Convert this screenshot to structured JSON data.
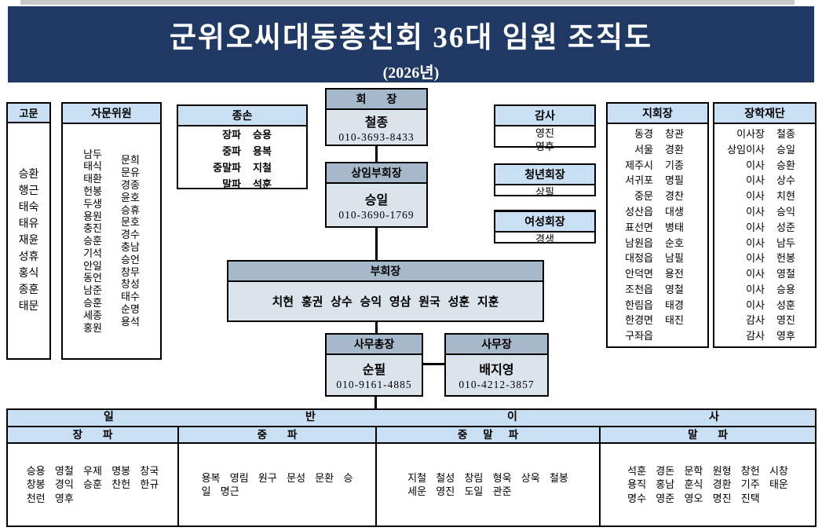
{
  "title": {
    "text": "군위오씨대동종친회 36대 임원 조직도",
    "subtitle": "(2026년)",
    "bg": "#1f3864",
    "fg": "#ffffff"
  },
  "colors": {
    "exec_header": "#a6b9cb",
    "exec_body": "#dbe3eb",
    "light_header": "#c9dff3",
    "border": "#000000"
  },
  "boxes": {
    "gomun": {
      "title": "고문",
      "names": [
        "승환",
        "행근",
        "태숙",
        "태유",
        "재윤",
        "성휴",
        "홍식",
        "종훈",
        "태문"
      ]
    },
    "advisors": {
      "title": "자문위원",
      "col1": [
        "남두",
        "태식",
        "태환",
        "헌봉",
        "두생",
        "용원",
        "충진",
        "승훈",
        "기석",
        "안일",
        "동언",
        "남준",
        "승훈",
        "세종",
        "홍원"
      ],
      "col2": [
        "문희",
        "문유",
        "경종",
        "윤호",
        "승휴",
        "문호",
        "경수",
        "충남",
        "승언",
        "창무",
        "창성",
        "태수",
        "순명",
        "용석"
      ]
    },
    "jongson": {
      "title": "종손",
      "rows": [
        {
          "label": "장파",
          "name": "승용"
        },
        {
          "label": "중파",
          "name": "용복"
        },
        {
          "label": "중말파",
          "name": "지철"
        },
        {
          "label": "말파",
          "name": "석훈"
        }
      ]
    },
    "chairman": {
      "title": "회장",
      "name": "철종",
      "phone": "010-3693-8433"
    },
    "standing_vice": {
      "title": "상임부회장",
      "name": "승일",
      "phone": "010-3690-1769"
    },
    "auditors": {
      "title": "감사",
      "names": [
        "영진",
        "영후"
      ]
    },
    "youth": {
      "title": "청년회장",
      "name": "상필"
    },
    "women": {
      "title": "여성회장",
      "name": "경생"
    },
    "branch_chairs": {
      "title": "지회장",
      "rows": [
        {
          "region": "동경",
          "name": "창관"
        },
        {
          "region": "서울",
          "name": "경환"
        },
        {
          "region": "제주시",
          "name": "기종"
        },
        {
          "region": "서귀포",
          "name": "명필"
        },
        {
          "region": "중문",
          "name": "경찬"
        },
        {
          "region": "성산읍",
          "name": "대생"
        },
        {
          "region": "표선면",
          "name": "병태"
        },
        {
          "region": "남원읍",
          "name": "순호"
        },
        {
          "region": "대정읍",
          "name": "남필"
        },
        {
          "region": "안덕면",
          "name": "용전"
        },
        {
          "region": "조천읍",
          "name": "영철"
        },
        {
          "region": "한림읍",
          "name": "태경"
        },
        {
          "region": "한경면",
          "name": "태진"
        },
        {
          "region": "구좌읍",
          "name": ""
        }
      ]
    },
    "scholarship": {
      "title": "장학재단",
      "rows": [
        {
          "role": "이사장",
          "name": "철종"
        },
        {
          "role": "상임이사",
          "name": "승일"
        },
        {
          "role": "이사",
          "name": "승환"
        },
        {
          "role": "이사",
          "name": "상수"
        },
        {
          "role": "이사",
          "name": "치현"
        },
        {
          "role": "이사",
          "name": "승익"
        },
        {
          "role": "이사",
          "name": "성준"
        },
        {
          "role": "이사",
          "name": "남두"
        },
        {
          "role": "이사",
          "name": "헌봉"
        },
        {
          "role": "이사",
          "name": "영철"
        },
        {
          "role": "이사",
          "name": "승용"
        },
        {
          "role": "이사",
          "name": "성훈"
        },
        {
          "role": "감사",
          "name": "영진"
        },
        {
          "role": "감사",
          "name": "영후"
        }
      ]
    },
    "vice_chairmen": {
      "title": "부회장",
      "names": "치현 홍권 상수 승익 영삼 원국 성훈 지훈"
    },
    "secretary_general": {
      "title": "사무총장",
      "name": "순필",
      "phone": "010-9161-4885"
    },
    "office_manager": {
      "title": "사무장",
      "name": "배지영",
      "phone": "010-4212-3857"
    }
  },
  "directors_table": {
    "merged_header": [
      "일",
      "반",
      "이",
      "사"
    ],
    "columns": [
      {
        "header": "장파",
        "lines": [
          "승용 영철 우제 명봉 창국",
          "창봉 경익 승훈 찬헌 한규",
          "천런 영후"
        ]
      },
      {
        "header": "중파",
        "lines": [
          "용복 영림 원구 문성 문환 승",
          "일 명근"
        ]
      },
      {
        "header": "중말파",
        "lines": [
          "지철 철성 창림 형욱 상욱 철봉",
          "세운 영진 도일 관준"
        ]
      },
      {
        "header": "말파",
        "lines": [
          "석훈 경돈 문학 원형 창헌 시창",
          "용직 홍남 훈식 경환 기주 태운",
          "명수 영준 영오 명진 진택"
        ]
      }
    ]
  }
}
